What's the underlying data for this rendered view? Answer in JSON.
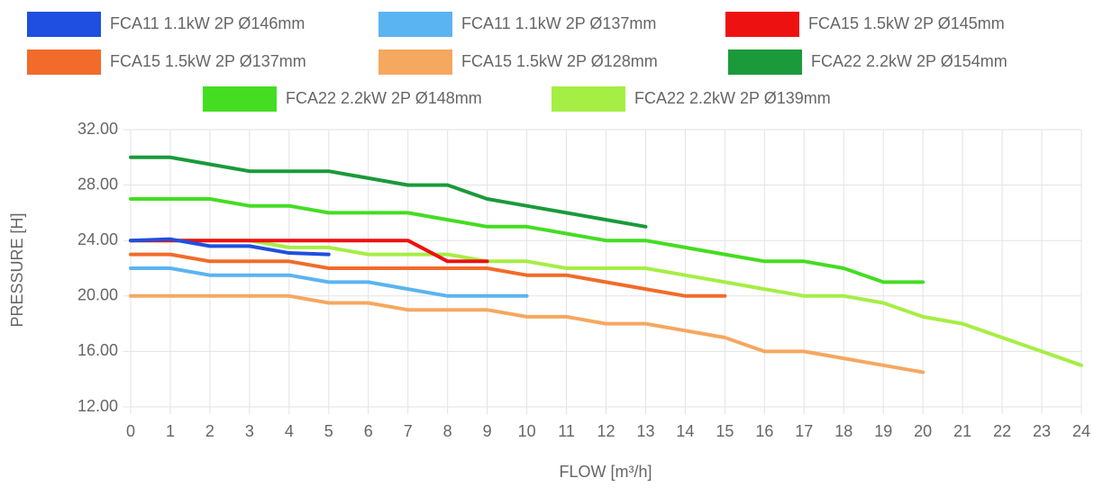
{
  "chart_data": {
    "type": "line",
    "x_label": "FLOW [m³/h]",
    "y_label": "PRESSURE [H]",
    "x": [
      0,
      1,
      2,
      3,
      4,
      5,
      6,
      7,
      8,
      9,
      10,
      11,
      12,
      13,
      14,
      15,
      16,
      17,
      18,
      19,
      20,
      21,
      22,
      23,
      24
    ],
    "xlim": [
      0,
      24
    ],
    "xticks": [
      0,
      1,
      2,
      3,
      4,
      5,
      6,
      7,
      8,
      9,
      10,
      11,
      12,
      13,
      14,
      15,
      16,
      17,
      18,
      19,
      20,
      21,
      22,
      23,
      24
    ],
    "ylim": [
      12,
      32
    ],
    "yticks": [
      {
        "value": 12,
        "label": "12.00"
      },
      {
        "value": 16,
        "label": "16.00"
      },
      {
        "value": 20,
        "label": "20.00"
      },
      {
        "value": 24,
        "label": "24.00"
      },
      {
        "value": 28,
        "label": "28.00"
      },
      {
        "value": 32,
        "label": "32.00"
      }
    ],
    "grid": true,
    "legend": "top",
    "series": [
      {
        "name": "FCA11 1.1kW 2P Ø146mm",
        "color": "#1f4fe0",
        "values": [
          24,
          24.1,
          23.6,
          23.6,
          23.1,
          23,
          null,
          null,
          null,
          null,
          null,
          null,
          null,
          null,
          null,
          null,
          null,
          null,
          null,
          null,
          null,
          null,
          null,
          null,
          null
        ]
      },
      {
        "name": "FCA11 1.1kW 2P Ø137mm",
        "color": "#5ab4f2",
        "values": [
          22,
          22,
          21.5,
          21.5,
          21.5,
          21,
          21,
          20.5,
          20,
          20,
          20,
          null,
          null,
          null,
          null,
          null,
          null,
          null,
          null,
          null,
          null,
          null,
          null,
          null,
          null
        ]
      },
      {
        "name": "FCA15 1.5kW 2P Ø145mm",
        "color": "#ee1111",
        "values": [
          24,
          24,
          24,
          24,
          24,
          24,
          24,
          24,
          22.5,
          22.5,
          null,
          null,
          null,
          null,
          null,
          null,
          null,
          null,
          null,
          null,
          null,
          null,
          null,
          null,
          null
        ]
      },
      {
        "name": "FCA15 1.5kW 2P Ø137mm",
        "color": "#f26b2a",
        "values": [
          23,
          23,
          22.5,
          22.5,
          22.5,
          22,
          22,
          22,
          22,
          22,
          21.5,
          21.5,
          21,
          20.5,
          20,
          20,
          null,
          null,
          null,
          null,
          null,
          null,
          null,
          null,
          null
        ]
      },
      {
        "name": "FCA15 1.5kW 2P Ø128mm",
        "color": "#f5a860",
        "values": [
          20,
          20,
          20,
          20,
          20,
          19.5,
          19.5,
          19,
          19,
          19,
          18.5,
          18.5,
          18,
          18,
          17.5,
          17,
          16,
          16,
          15.5,
          15,
          14.5,
          null,
          null,
          null,
          null
        ]
      },
      {
        "name": "FCA22 2.2kW 2P Ø154mm",
        "color": "#1a9a3a",
        "values": [
          30,
          30,
          29.5,
          29,
          29,
          29,
          28.5,
          28,
          28,
          27,
          26.5,
          26,
          25.5,
          25,
          null,
          null,
          null,
          null,
          null,
          null,
          null,
          null,
          null,
          null,
          null
        ]
      },
      {
        "name": "FCA22 2.2kW 2P Ø148mm",
        "color": "#44dd22",
        "values": [
          27,
          27,
          27,
          26.5,
          26.5,
          26,
          26,
          26,
          25.5,
          25,
          25,
          24.5,
          24,
          24,
          23.5,
          23,
          22.5,
          22.5,
          22,
          21,
          21,
          null,
          null,
          null,
          null
        ]
      },
      {
        "name": "FCA22 2.2kW 2P Ø139mm",
        "color": "#a5ee44",
        "values": [
          24,
          24,
          24,
          24,
          23.5,
          23.5,
          23,
          23,
          23,
          22.5,
          22.5,
          22,
          22,
          22,
          21.5,
          21,
          20.5,
          20,
          20,
          19.5,
          18.5,
          18,
          17,
          16,
          15
        ]
      }
    ]
  }
}
